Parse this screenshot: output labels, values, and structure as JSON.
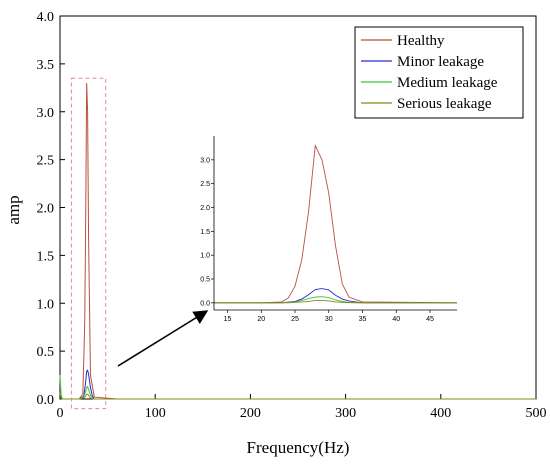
{
  "chart_data": [
    {
      "type": "line",
      "title": "",
      "xlabel": "Frequency(Hz)",
      "ylabel": "amp",
      "xlim": [
        0,
        500
      ],
      "ylim": [
        0,
        4.0
      ],
      "x_ticks": [
        0,
        100,
        200,
        300,
        400,
        500
      ],
      "x_tick_labels": [
        "0",
        "100",
        "200",
        "300",
        "400",
        "500"
      ],
      "y_ticks": [
        0,
        0.5,
        1.0,
        1.5,
        2.0,
        2.5,
        3.0,
        3.5,
        4.0
      ],
      "y_tick_labels": [
        "0.0",
        "0.5",
        "1.0",
        "1.5",
        "2.0",
        "2.5",
        "3.0",
        "3.5",
        "4.0"
      ],
      "grid": false,
      "legend_position": "top-right",
      "highlight_region": {
        "x": [
          12,
          48
        ],
        "y": [
          -0.1,
          3.35
        ]
      },
      "series": [
        {
          "name": "Healthy",
          "color": "#b5533c",
          "x": [
            0,
            1,
            2,
            3,
            20,
            24,
            26,
            27,
            28,
            29,
            30,
            32,
            36,
            60,
            500
          ],
          "y": [
            0.22,
            0.05,
            0.01,
            0,
            0,
            0.05,
            0.8,
            1.9,
            3.3,
            3.0,
            1.7,
            0.25,
            0.02,
            0,
            0
          ]
        },
        {
          "name": "Minor leakage",
          "color": "#2b2bd4",
          "x": [
            0,
            1,
            2,
            3,
            20,
            25,
            27,
            28,
            29,
            30,
            32,
            34,
            36,
            60,
            500
          ],
          "y": [
            0.08,
            0.02,
            0,
            0,
            0,
            0.03,
            0.18,
            0.29,
            0.3,
            0.26,
            0.12,
            0.03,
            0,
            0,
            0
          ]
        },
        {
          "name": "Medium leakage",
          "color": "#3cc43c",
          "x": [
            0,
            1,
            2,
            3,
            20,
            25,
            27,
            28,
            29,
            30,
            32,
            35,
            60,
            500
          ],
          "y": [
            0.25,
            0.06,
            0.01,
            0,
            0,
            0.02,
            0.08,
            0.12,
            0.13,
            0.1,
            0.04,
            0,
            0,
            0
          ]
        },
        {
          "name": "Serious leakage",
          "color": "#8a8a1a",
          "x": [
            0,
            1,
            2,
            3,
            20,
            25,
            27,
            28,
            29,
            30,
            32,
            35,
            60,
            500
          ],
          "y": [
            0.06,
            0.01,
            0,
            0,
            0,
            0.01,
            0.03,
            0.05,
            0.05,
            0.04,
            0.01,
            0,
            0,
            0
          ]
        }
      ]
    },
    {
      "type": "line",
      "title": "",
      "xlabel": "",
      "ylabel": "",
      "xlim": [
        13,
        49
      ],
      "ylim": [
        -0.15,
        3.5
      ],
      "x_ticks": [
        15,
        20,
        25,
        30,
        35,
        40,
        45
      ],
      "x_tick_labels": [
        "15",
        "20",
        "25",
        "30",
        "35",
        "40",
        "45"
      ],
      "y_ticks": [
        0.0,
        0.5,
        1.0,
        1.5,
        2.0,
        2.5,
        3.0
      ],
      "y_tick_labels": [
        "0.0",
        "0.5",
        "1.0",
        "1.5",
        "2.0",
        "2.5",
        "3.0"
      ],
      "grid": false,
      "series": [
        {
          "name": "Healthy",
          "color": "#b5533c",
          "x": [
            13,
            20,
            23,
            24,
            25,
            26,
            27,
            28,
            29,
            30,
            31,
            32,
            33,
            35,
            49
          ],
          "y": [
            0,
            0,
            0.02,
            0.1,
            0.35,
            0.9,
            1.9,
            3.3,
            3.0,
            2.3,
            1.2,
            0.4,
            0.12,
            0.02,
            0
          ]
        },
        {
          "name": "Minor leakage",
          "color": "#2b2bd4",
          "x": [
            13,
            23,
            25,
            26,
            27,
            28,
            29,
            30,
            31,
            32,
            33,
            34,
            35,
            49
          ],
          "y": [
            0,
            0,
            0.03,
            0.08,
            0.17,
            0.28,
            0.3,
            0.27,
            0.16,
            0.08,
            0.04,
            0.02,
            0,
            0
          ]
        },
        {
          "name": "Medium leakage",
          "color": "#3cc43c",
          "x": [
            13,
            23,
            25,
            26,
            27,
            28,
            29,
            30,
            31,
            32,
            33,
            35,
            49
          ],
          "y": [
            0,
            0,
            0.02,
            0.05,
            0.09,
            0.12,
            0.13,
            0.11,
            0.06,
            0.03,
            0.01,
            0,
            0
          ]
        },
        {
          "name": "Serious leakage",
          "color": "#8a8a1a",
          "x": [
            13,
            24,
            26,
            27,
            28,
            29,
            30,
            31,
            32,
            34,
            49
          ],
          "y": [
            0,
            0,
            0.02,
            0.03,
            0.05,
            0.05,
            0.04,
            0.02,
            0.01,
            0,
            0
          ]
        }
      ]
    }
  ]
}
